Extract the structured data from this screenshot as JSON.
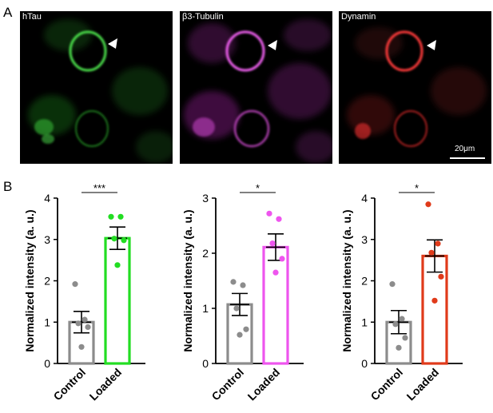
{
  "panel_a_letter": "A",
  "panel_b_letter": "B",
  "panels": [
    {
      "label": "hTau",
      "color": "#3fcf3f"
    },
    {
      "label": "β3-Tubulin",
      "color": "#e84ee8"
    },
    {
      "label": "Dynamin",
      "color": "#ee2a2a"
    }
  ],
  "scale_bar_label": "20μm",
  "chart_data": [
    {
      "type": "bar",
      "categories": [
        "Control",
        "Loaded"
      ],
      "values": [
        1.0,
        3.03
      ],
      "errors": [
        0.26,
        0.27
      ],
      "points": [
        [
          1.92,
          1.06,
          0.97,
          0.88,
          0.4
        ],
        [
          3.55,
          3.55,
          3.02,
          2.98,
          2.38
        ]
      ],
      "colors": [
        "#8c8c8c",
        "#22dd22"
      ],
      "ylabel": "Normalized intensity (a. u.)",
      "ylim": [
        0,
        4
      ],
      "yticks": [
        0,
        1,
        2,
        3,
        4
      ],
      "significance": "***"
    },
    {
      "type": "bar",
      "categories": [
        "Control",
        "Loaded"
      ],
      "values": [
        1.07,
        2.11
      ],
      "errors": [
        0.2,
        0.24
      ],
      "points": [
        [
          1.48,
          1.42,
          1.0,
          0.62,
          0.52
        ],
        [
          2.72,
          2.62,
          2.18,
          1.9,
          1.65
        ]
      ],
      "colors": [
        "#8c8c8c",
        "#ee55ee"
      ],
      "ylabel": "Normalized intensity (a. u.)",
      "ylim": [
        0,
        3
      ],
      "yticks": [
        0,
        1,
        2,
        3
      ],
      "significance": "*"
    },
    {
      "type": "bar",
      "categories": [
        "Control",
        "Loaded"
      ],
      "values": [
        1.0,
        2.6
      ],
      "errors": [
        0.28,
        0.39
      ],
      "points": [
        [
          1.92,
          1.08,
          0.95,
          0.62,
          0.38
        ],
        [
          3.85,
          2.9,
          2.68,
          2.1,
          1.52
        ]
      ],
      "colors": [
        "#8c8c8c",
        "#e03a1a"
      ],
      "ylabel": "Normalized intensity (a. u.)",
      "ylim": [
        0,
        4
      ],
      "yticks": [
        0,
        1,
        2,
        3,
        4
      ],
      "significance": "*"
    }
  ]
}
